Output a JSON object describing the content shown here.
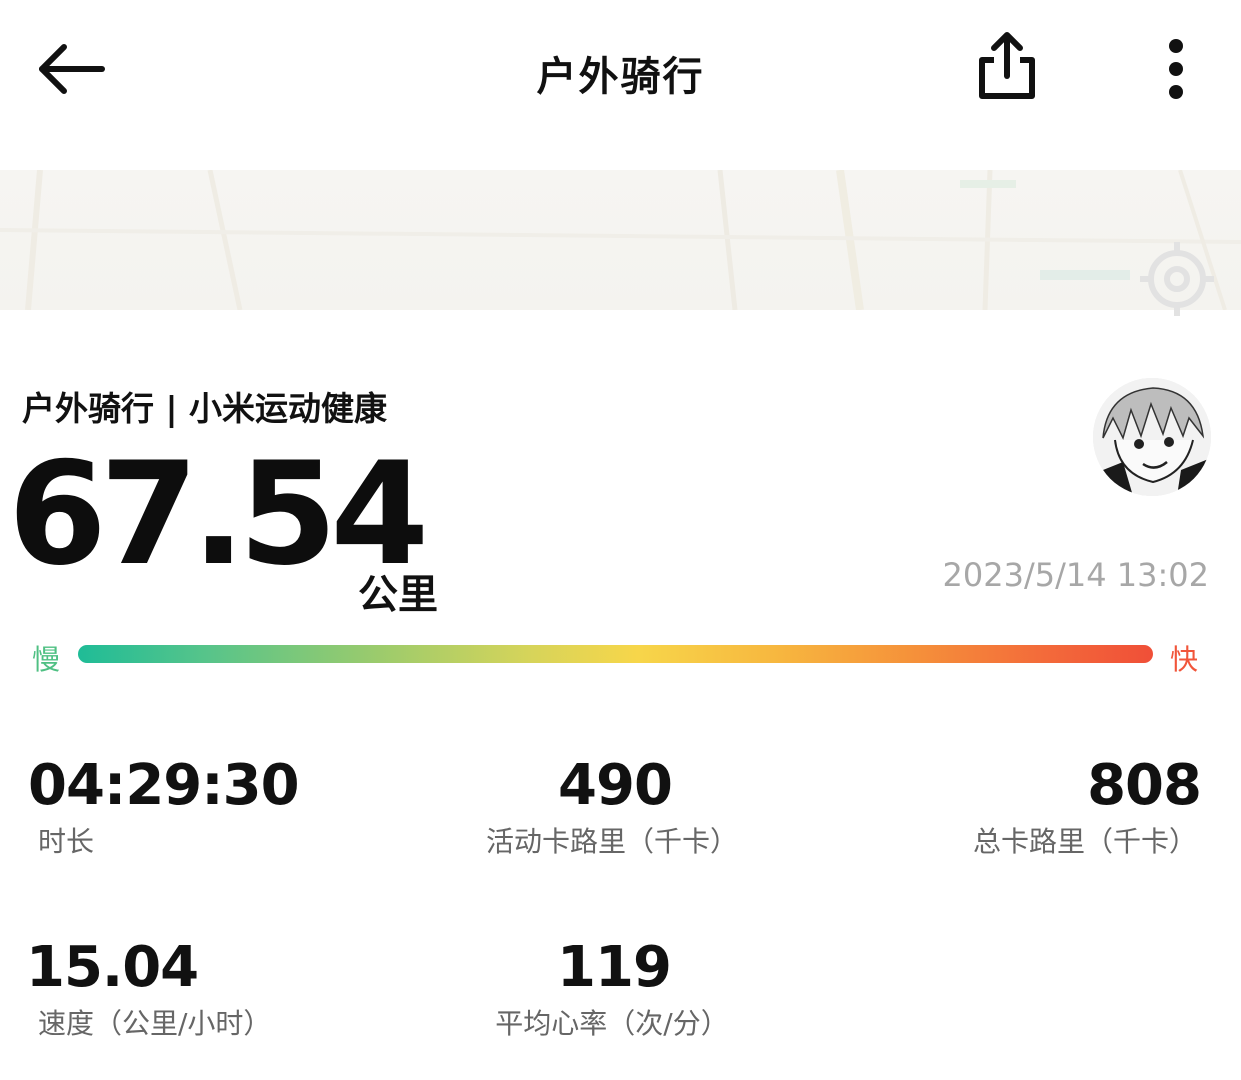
{
  "header": {
    "title": "户外骑行",
    "back_icon": "back-arrow-icon",
    "share_icon": "share-icon",
    "more_icon": "more-vertical-icon"
  },
  "summary": {
    "activity_title": "户外骑行 | 小米运动健康",
    "distance_value": "67.54",
    "distance_unit": "公里",
    "date_time": "2023/5/14 13:02"
  },
  "pace_bar": {
    "slow_label": "慢",
    "fast_label": "快",
    "slow_color": "#4fc083",
    "fast_color": "#f1553a"
  },
  "stats": [
    {
      "value": "04:29:30",
      "label": "时长"
    },
    {
      "value": "490",
      "label": "活动卡路里（千卡）"
    },
    {
      "value": "808",
      "label": "总卡路里（千卡）"
    },
    {
      "value": "15.04",
      "label": "速度（公里/小时）"
    },
    {
      "value": "119",
      "label": "平均心率（次/分）"
    }
  ]
}
